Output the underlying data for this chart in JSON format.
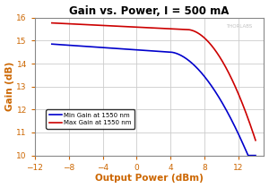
{
  "title": "Gain vs. Power, I = 500 mA",
  "xlabel": "Output Power (dBm)",
  "ylabel": "Gain (dB)",
  "xlim": [
    -12,
    15
  ],
  "ylim": [
    10,
    16
  ],
  "xticks": [
    -12,
    -8,
    -4,
    0,
    4,
    8,
    12
  ],
  "yticks": [
    10,
    11,
    12,
    13,
    14,
    15,
    16
  ],
  "watermark": "THORLABS",
  "legend": [
    {
      "label": "Min Gain at 1550 nm",
      "color": "#0000cc"
    },
    {
      "label": "Max Gain at 1550 nm",
      "color": "#cc0000"
    }
  ],
  "background_color": "#ffffff",
  "grid_color": "#cccccc",
  "title_color": "#000000",
  "axis_label_color": "#cc6600",
  "tick_label_color": "#cc6600",
  "spine_color": "#888888"
}
